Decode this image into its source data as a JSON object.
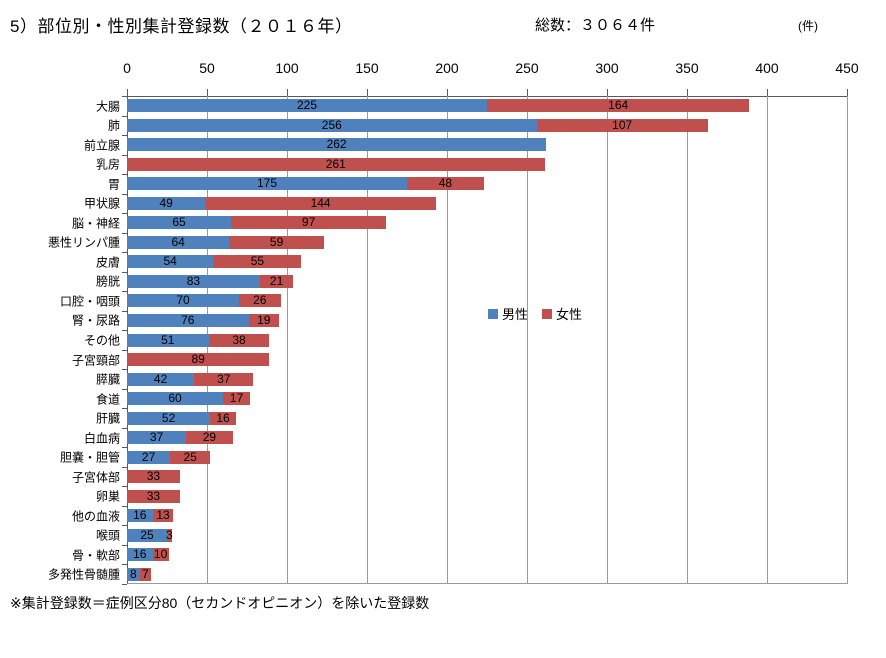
{
  "header": {
    "title": "5）部位別・性別集計登録数（２０１６年）",
    "total": "総数：３０６４件",
    "unit": "(件)"
  },
  "footnote": "※集計登録数＝症例区分80（セカンドオピニオン）を除いた登録数",
  "colors": {
    "male": "#4F81BD",
    "female": "#C0504D",
    "gridline": "#9b9b9b",
    "axis": "#595959"
  },
  "chart_data": {
    "type": "bar",
    "orientation": "horizontal",
    "stacked": true,
    "title": "5）部位別・性別集計登録数（２０１６年）",
    "xlabel": "件",
    "xlim": [
      0,
      450
    ],
    "xticks": [
      0,
      50,
      100,
      150,
      200,
      250,
      300,
      350,
      400,
      450
    ],
    "grid": true,
    "value_labels": true,
    "legend_position": "center-right",
    "categories": [
      "大腸",
      "肺",
      "前立腺",
      "乳房",
      "胃",
      "甲状腺",
      "脳・神経",
      "悪性リンパ腫",
      "皮膚",
      "膀胱",
      "口腔・咽頭",
      "腎・尿路",
      "その他",
      "子宮頸部",
      "膵臓",
      "食道",
      "肝臓",
      "白血病",
      "胆嚢・胆管",
      "子宮体部",
      "卵巣",
      "他の血液",
      "喉頭",
      "骨・軟部",
      "多発性骨髄腫"
    ],
    "series": [
      {
        "name": "男性",
        "color": "#4F81BD",
        "values": [
          225,
          256,
          262,
          0,
          175,
          49,
          65,
          64,
          54,
          83,
          70,
          76,
          51,
          0,
          42,
          60,
          52,
          37,
          27,
          0,
          0,
          16,
          25,
          16,
          8
        ]
      },
      {
        "name": "女性",
        "color": "#C0504D",
        "values": [
          164,
          107,
          0,
          261,
          48,
          144,
          97,
          59,
          55,
          21,
          26,
          19,
          38,
          89,
          37,
          17,
          16,
          29,
          25,
          33,
          33,
          13,
          3,
          10,
          7
        ]
      }
    ]
  }
}
